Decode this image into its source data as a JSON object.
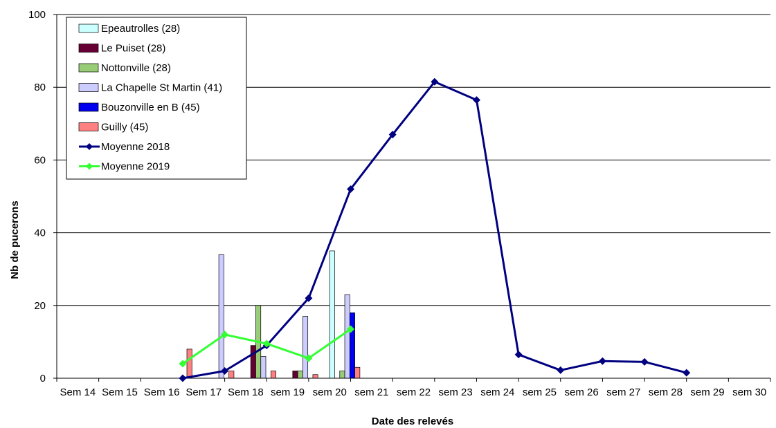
{
  "chart_data": {
    "type": "bar",
    "xlabel": "Date des relevés",
    "ylabel": "Nb de pucerons",
    "ylim": [
      0,
      100
    ],
    "yticks": [
      0,
      20,
      40,
      60,
      80,
      100
    ],
    "grid": "horizontal",
    "legend_position": "top-left",
    "categories": [
      "Sem 14",
      "Sem 15",
      "Sem 16",
      "Sem 17",
      "Sem 18",
      "sem 19",
      "sem 20",
      "sem 21",
      "sem 22",
      "sem 23",
      "sem 24",
      "sem 25",
      "sem 26",
      "sem 27",
      "sem 28",
      "sem 29",
      "sem 30"
    ],
    "series": [
      {
        "name": "Epeautrolles (28)",
        "type": "bar",
        "color": "#ccffff",
        "values": [
          null,
          null,
          null,
          null,
          null,
          null,
          35,
          null,
          null,
          null,
          null,
          null,
          null,
          null,
          null,
          null,
          null
        ]
      },
      {
        "name": "Le Puiset (28)",
        "type": "bar",
        "color": "#660033",
        "values": [
          null,
          null,
          null,
          null,
          9,
          2,
          null,
          null,
          null,
          null,
          null,
          null,
          null,
          null,
          null,
          null,
          null
        ]
      },
      {
        "name": "Nottonville (28)",
        "type": "bar",
        "color": "#99cc77",
        "values": [
          null,
          null,
          null,
          null,
          20,
          2,
          2,
          null,
          null,
          null,
          null,
          null,
          null,
          null,
          null,
          null,
          null
        ]
      },
      {
        "name": "La Chapelle St Martin (41)",
        "type": "bar",
        "color": "#ccccff",
        "values": [
          null,
          null,
          null,
          34,
          6,
          17,
          23,
          null,
          null,
          null,
          null,
          null,
          null,
          null,
          null,
          null,
          null
        ]
      },
      {
        "name": "Bouzonville en B (45)",
        "type": "bar",
        "color": "#0000ee",
        "values": [
          null,
          null,
          null,
          null,
          null,
          null,
          18,
          null,
          null,
          null,
          null,
          null,
          null,
          null,
          null,
          null,
          null
        ]
      },
      {
        "name": "Guilly (45)",
        "type": "bar",
        "color": "#ff8080",
        "values": [
          null,
          null,
          8,
          2,
          2,
          1,
          3,
          null,
          null,
          null,
          null,
          null,
          null,
          null,
          null,
          null,
          null
        ]
      },
      {
        "name": "Moyenne 2018",
        "type": "line",
        "color": "#000080",
        "values": [
          null,
          null,
          0,
          2,
          9,
          22,
          52,
          67,
          81.5,
          76.5,
          6.5,
          2.2,
          4.7,
          4.5,
          1.5,
          null,
          null
        ]
      },
      {
        "name": "Moyenne 2019",
        "type": "line",
        "color": "#33ff33",
        "values": [
          null,
          null,
          4,
          12,
          9.5,
          5.5,
          13.5,
          null,
          null,
          null,
          null,
          null,
          null,
          null,
          null,
          null,
          null
        ]
      }
    ]
  }
}
